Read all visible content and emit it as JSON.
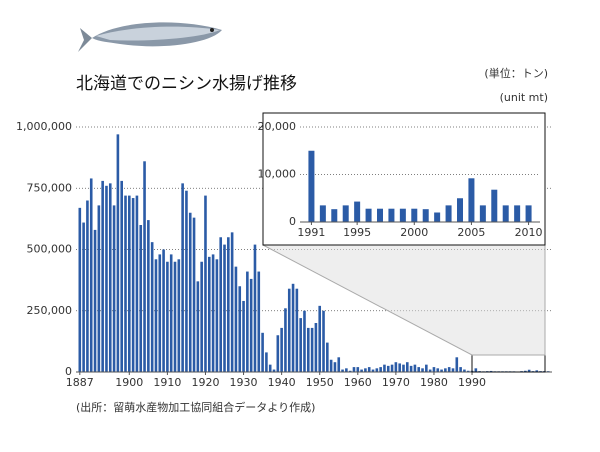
{
  "chart_data": [
    {
      "type": "bar",
      "title": "北海道でのニシン水揚げ推移",
      "unit_label": "(単位：トン)",
      "unit_label_en": "(unit mt)",
      "source": "(出所：留萌水産物加工協同組合データより作成)",
      "x": [
        1887,
        1888,
        1889,
        1890,
        1891,
        1892,
        1893,
        1894,
        1895,
        1896,
        1897,
        1898,
        1899,
        1900,
        1901,
        1902,
        1903,
        1904,
        1905,
        1906,
        1907,
        1908,
        1909,
        1910,
        1911,
        1912,
        1913,
        1914,
        1915,
        1916,
        1917,
        1918,
        1919,
        1920,
        1921,
        1922,
        1923,
        1924,
        1925,
        1926,
        1927,
        1928,
        1929,
        1930,
        1931,
        1932,
        1933,
        1934,
        1935,
        1936,
        1937,
        1938,
        1939,
        1940,
        1941,
        1942,
        1943,
        1944,
        1945,
        1946,
        1947,
        1948,
        1949,
        1950,
        1951,
        1952,
        1953,
        1954,
        1955,
        1956,
        1957,
        1958,
        1959,
        1960,
        1961,
        1962,
        1963,
        1964,
        1965,
        1966,
        1967,
        1968,
        1969,
        1970,
        1971,
        1972,
        1973,
        1974,
        1975,
        1976,
        1977,
        1978,
        1979,
        1980,
        1981,
        1982,
        1983,
        1984,
        1985,
        1986,
        1987,
        1988,
        1989,
        1990,
        1991,
        1992,
        1993,
        1994,
        1995,
        1996,
        1997,
        1998,
        1999,
        2000,
        2001,
        2002,
        2003,
        2004,
        2005,
        2006,
        2007,
        2008,
        2009,
        2010
      ],
      "values": [
        670000,
        610000,
        700000,
        790000,
        580000,
        680000,
        780000,
        760000,
        770000,
        680000,
        970000,
        780000,
        720000,
        720000,
        710000,
        720000,
        600000,
        860000,
        620000,
        530000,
        460000,
        480000,
        500000,
        450000,
        480000,
        450000,
        460000,
        770000,
        740000,
        650000,
        630000,
        370000,
        450000,
        720000,
        470000,
        480000,
        460000,
        550000,
        520000,
        550000,
        570000,
        430000,
        350000,
        290000,
        410000,
        380000,
        520000,
        410000,
        160000,
        80000,
        30000,
        10000,
        150000,
        180000,
        260000,
        340000,
        360000,
        340000,
        220000,
        250000,
        180000,
        180000,
        200000,
        270000,
        250000,
        120000,
        50000,
        40000,
        60000,
        10000,
        15000,
        5000,
        20000,
        20000,
        10000,
        15000,
        20000,
        10000,
        15000,
        20000,
        30000,
        25000,
        30000,
        40000,
        35000,
        30000,
        40000,
        25000,
        30000,
        20000,
        15000,
        30000,
        10000,
        20000,
        15000,
        10000,
        15000,
        20000,
        15000,
        60000,
        20000,
        10000,
        5000,
        5000,
        15000,
        3500,
        2700,
        3500,
        4300,
        2800,
        2800,
        2800,
        2800,
        2800,
        2700,
        2000,
        3500,
        5000,
        9200,
        3500,
        6800,
        3500,
        3500,
        3500
      ],
      "color": "#2b5ba6",
      "xlim": [
        1886,
        2011
      ],
      "ylim": [
        0,
        1000000
      ],
      "xticks": [
        1887,
        1900,
        1910,
        1920,
        1930,
        1940,
        1950,
        1960,
        1970,
        1980,
        1990
      ],
      "yticks": [
        0,
        {
          "value": 250000,
          "label": "250,000"
        },
        {
          "value": 500000,
          "label": "500,000"
        },
        {
          "value": 750000,
          "label": "750,000"
        },
        {
          "value": 1000000,
          "label": "1,000,000"
        }
      ],
      "grid": true
    },
    {
      "type": "bar",
      "x": [
        1991,
        1992,
        1993,
        1994,
        1995,
        1996,
        1997,
        1998,
        1999,
        2000,
        2001,
        2002,
        2003,
        2004,
        2005,
        2006,
        2007,
        2008,
        2009,
        2010
      ],
      "values": [
        15000,
        3500,
        2700,
        3500,
        4300,
        2800,
        2800,
        2800,
        2800,
        2800,
        2700,
        2000,
        3500,
        5000,
        9200,
        3500,
        6800,
        3500,
        3500,
        3500
      ],
      "color": "#2b5ba6",
      "xlim": [
        1990,
        2011
      ],
      "ylim": [
        0,
        20000
      ],
      "xticks": [
        1991,
        1995,
        2000,
        2005,
        2010
      ],
      "yticks": [
        0,
        {
          "value": 10000,
          "label": "10,000"
        },
        {
          "value": 20000,
          "label": "20,000"
        }
      ],
      "grid": true
    }
  ]
}
